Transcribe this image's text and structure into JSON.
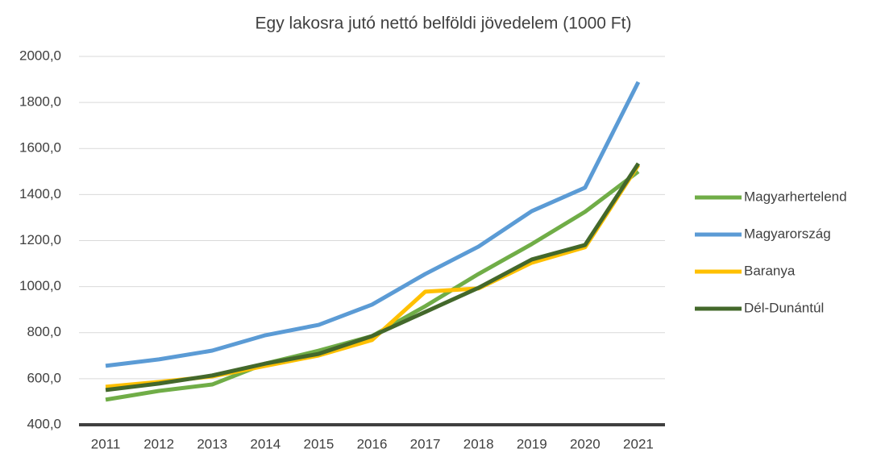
{
  "chart_data": {
    "type": "line",
    "title": "Egy lakosra jutó nettó belföldi jövedelem (1000 Ft)",
    "categories": [
      "2011",
      "2012",
      "2013",
      "2014",
      "2015",
      "2016",
      "2017",
      "2018",
      "2019",
      "2020",
      "2021"
    ],
    "series": [
      {
        "name": "Magyarhertelend",
        "color": "#70ad47",
        "values": [
          509,
          547,
          575,
          666,
          722,
          785,
          915,
          1055,
          1185,
          1325,
          1500
        ]
      },
      {
        "name": "Magyarország",
        "color": "#5b9bd5",
        "values": [
          656,
          684,
          722,
          789,
          834,
          922,
          1055,
          1174,
          1328,
          1430,
          1889
        ]
      },
      {
        "name": "Baranya",
        "color": "#ffc000",
        "values": [
          565,
          586,
          610,
          656,
          701,
          768,
          978,
          992,
          1104,
          1171,
          1528
        ]
      },
      {
        "name": "Dél-Dunántúl",
        "color": "#43682b",
        "values": [
          551,
          579,
          614,
          666,
          708,
          785,
          890,
          995,
          1118,
          1181,
          1535
        ]
      }
    ],
    "ylim": [
      400,
      2000
    ],
    "yticks": [
      {
        "value": 400,
        "label": "400,0"
      },
      {
        "value": 600,
        "label": "600,0"
      },
      {
        "value": 800,
        "label": "800,0"
      },
      {
        "value": 1000,
        "label": "1000,0"
      },
      {
        "value": 1200,
        "label": "1200,0"
      },
      {
        "value": 1400,
        "label": "1400,0"
      },
      {
        "value": 1600,
        "label": "1600,0"
      },
      {
        "value": 1800,
        "label": "1800,0"
      },
      {
        "value": 2000,
        "label": "2000,0"
      }
    ],
    "grid": true,
    "legend": "right"
  }
}
